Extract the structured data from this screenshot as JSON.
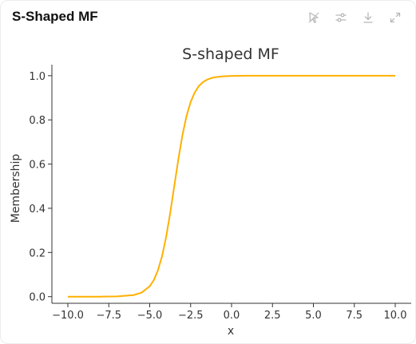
{
  "card": {
    "title": "S-Shaped MF"
  },
  "toolbar": {
    "icons": [
      "pin-icon",
      "sliders-icon",
      "download-icon",
      "expand-icon"
    ]
  },
  "colors": {
    "line": "#ffb000",
    "axis": "#333333",
    "icon": "#b8b8b8"
  },
  "chart_data": {
    "type": "line",
    "title": "S-shaped MF",
    "xlabel": "x",
    "ylabel": "Membership",
    "xlim": [
      -10.0,
      10.0
    ],
    "ylim": [
      -0.03,
      1.05
    ],
    "xticks": [
      "−10.0",
      "−7.5",
      "−5.0",
      "−2.5",
      "0.0",
      "2.5",
      "5.0",
      "7.5",
      "10.0"
    ],
    "xtick_values": [
      -10,
      -7.5,
      -5,
      -2.5,
      0,
      2.5,
      5,
      7.5,
      10
    ],
    "yticks": [
      "0.0",
      "0.2",
      "0.4",
      "0.6",
      "0.8",
      "1.0"
    ],
    "ytick_values": [
      0,
      0.2,
      0.4,
      0.6,
      0.8,
      1.0
    ],
    "grid": false,
    "series": [
      {
        "x": [
          -10,
          -9,
          -8,
          -7,
          -6,
          -5.5,
          -5,
          -4.75,
          -4.5,
          -4.25,
          -4,
          -3.75,
          -3.5,
          -3.25,
          -3,
          -2.75,
          -2.5,
          -2.25,
          -2,
          -1.75,
          -1.5,
          -1.25,
          -1,
          -0.5,
          0,
          1,
          2,
          3,
          5,
          7.5,
          10
        ],
        "y": [
          0.0,
          0.0,
          0.0,
          0.001,
          0.007,
          0.018,
          0.047,
          0.075,
          0.119,
          0.182,
          0.269,
          0.378,
          0.5,
          0.622,
          0.731,
          0.818,
          0.881,
          0.924,
          0.953,
          0.971,
          0.982,
          0.989,
          0.993,
          0.997,
          0.999,
          1.0,
          1.0,
          1.0,
          1.0,
          1.0,
          1.0
        ]
      }
    ]
  }
}
